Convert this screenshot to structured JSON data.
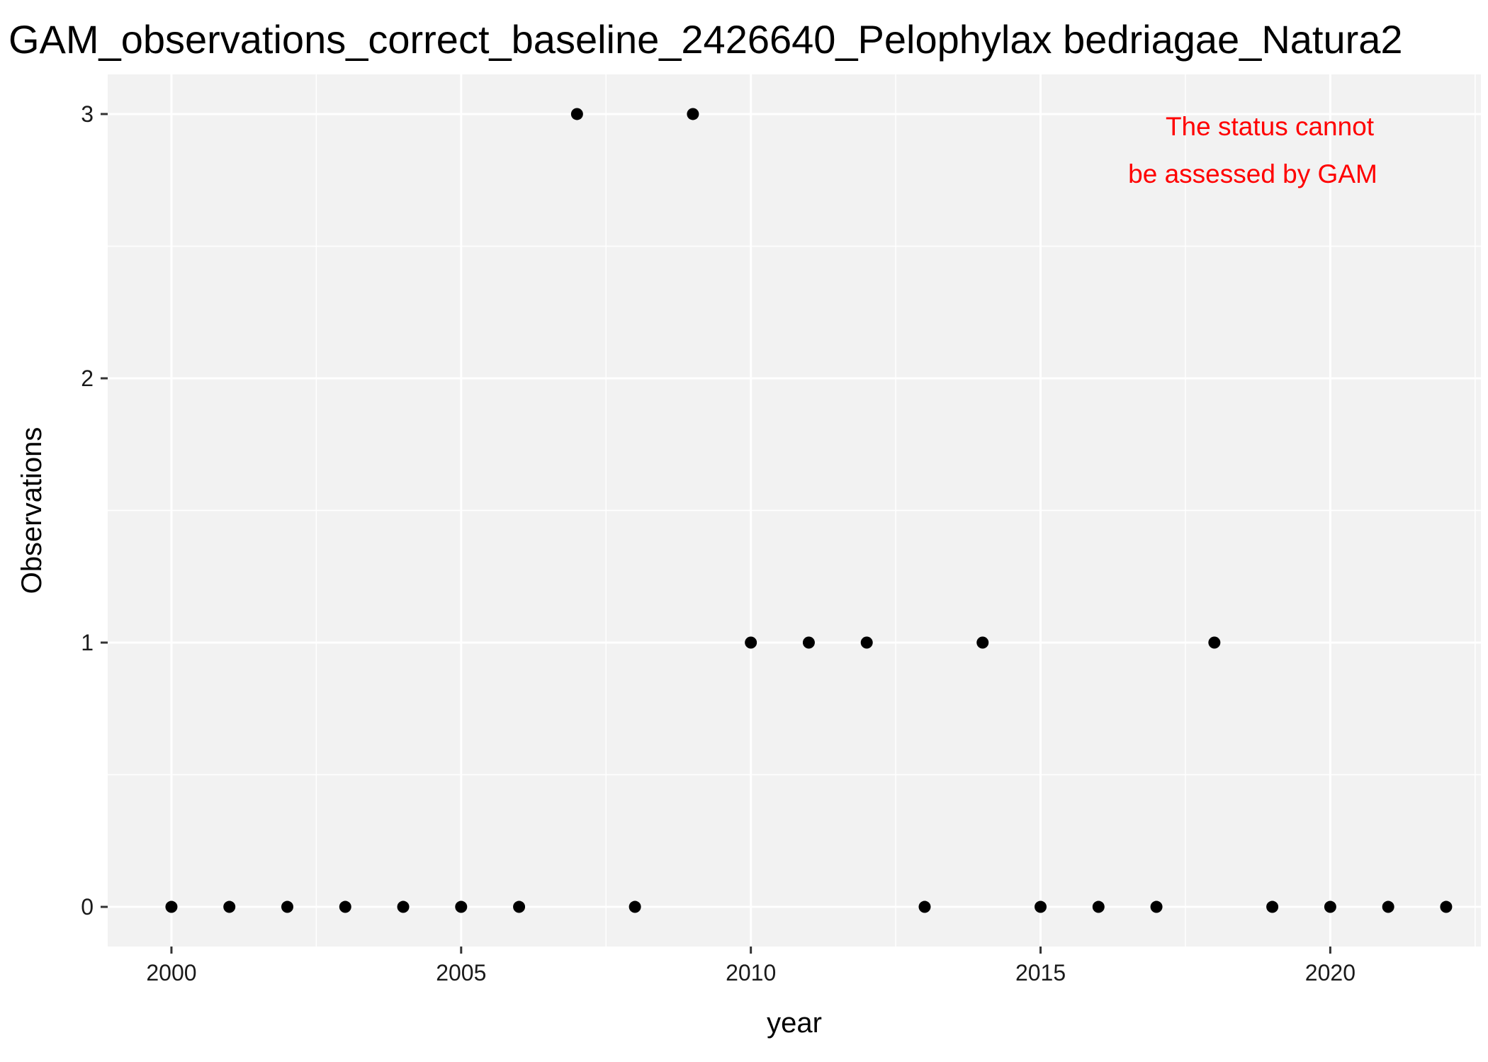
{
  "chart_data": {
    "type": "scatter",
    "title": "GAM_observations_correct_baseline_2426640_Pelophylax bedriagae_Natura2",
    "xlabel": "year",
    "ylabel": "Observations",
    "xlim": [
      1998.9,
      2022.6
    ],
    "ylim": [
      -0.15,
      3.15
    ],
    "x_ticks": [
      2000,
      2005,
      2010,
      2015,
      2020
    ],
    "y_ticks": [
      0,
      1,
      2,
      3
    ],
    "grid": true,
    "panel_background": "#f2f2f2",
    "grid_color": "#ffffff",
    "point_color": "#000000",
    "annotation": {
      "lines": [
        "The status cannot",
        "be assessed by GAM"
      ],
      "color": "#ff0000",
      "placement": "top-right"
    },
    "series": [
      {
        "x": [
          2000,
          2001,
          2002,
          2003,
          2004,
          2005,
          2006,
          2007,
          2008,
          2009,
          2010,
          2011,
          2012,
          2013,
          2014,
          2015,
          2016,
          2017,
          2018,
          2019,
          2020,
          2021,
          2022
        ],
        "y": [
          0,
          0,
          0,
          0,
          0,
          0,
          0,
          3,
          0,
          3,
          1,
          1,
          1,
          0,
          1,
          0,
          0,
          0,
          1,
          0,
          0,
          0,
          0
        ]
      }
    ]
  }
}
